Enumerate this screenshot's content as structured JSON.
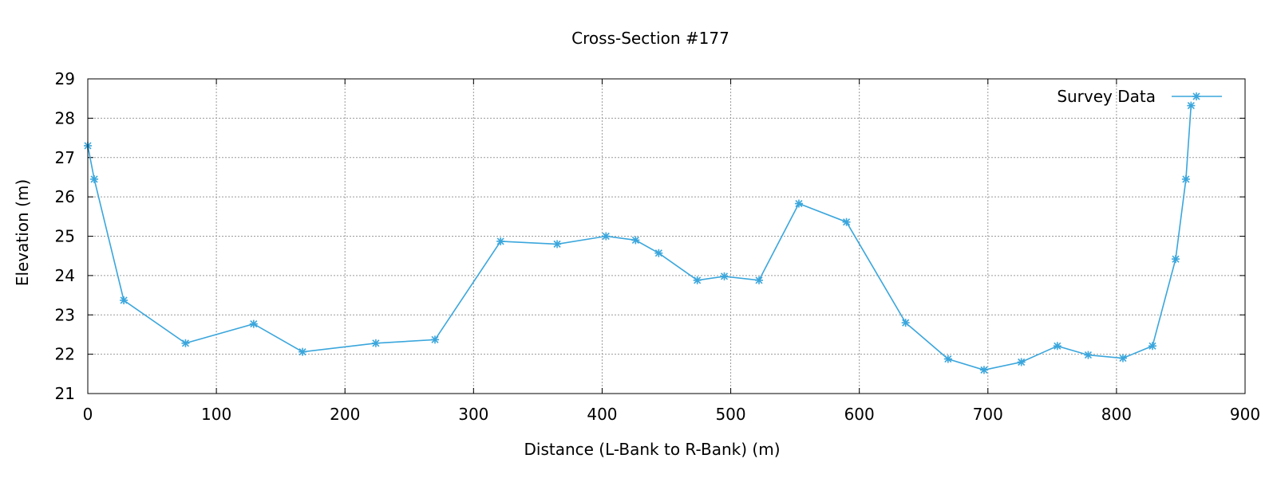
{
  "chart_data": {
    "type": "line",
    "title": "Cross-Section #177",
    "xlabel": "Distance (L-Bank to R-Bank) (m)",
    "ylabel": "Elevation (m)",
    "xlim": [
      0,
      900
    ],
    "ylim": [
      21,
      29
    ],
    "xticks": [
      0,
      100,
      200,
      300,
      400,
      500,
      600,
      700,
      800,
      900
    ],
    "yticks": [
      21,
      22,
      23,
      24,
      25,
      26,
      27,
      28,
      29
    ],
    "grid": true,
    "legend": "top-right",
    "series_color": "#3aa6dc",
    "series": [
      {
        "name": "Survey Data",
        "x": [
          0,
          5,
          28,
          76,
          129,
          167,
          224,
          270,
          321,
          365,
          403,
          426,
          444,
          474,
          495,
          522,
          553,
          590,
          636,
          669,
          697,
          726,
          754,
          778,
          805,
          828,
          846,
          854,
          858
        ],
        "y": [
          27.3,
          26.45,
          23.37,
          22.28,
          22.77,
          22.06,
          22.28,
          22.37,
          24.87,
          24.8,
          25.0,
          24.9,
          24.57,
          23.88,
          23.98,
          23.88,
          25.83,
          25.36,
          22.8,
          21.88,
          21.6,
          21.8,
          22.21,
          21.98,
          21.9,
          22.21,
          24.42,
          26.45,
          28.32
        ]
      }
    ]
  }
}
